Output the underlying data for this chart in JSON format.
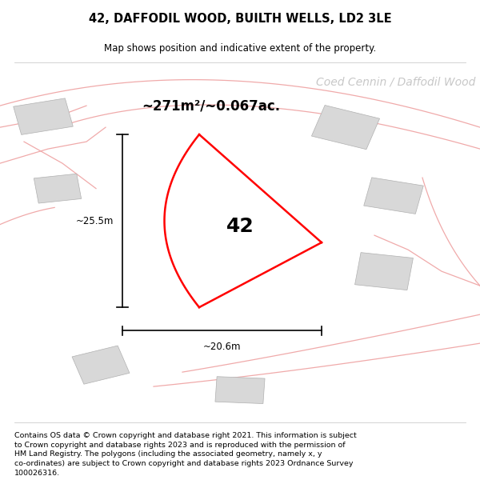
{
  "title": "42, DAFFODIL WOOD, BUILTH WELLS, LD2 3LE",
  "subtitle": "Map shows position and indicative extent of the property.",
  "footer": "Contains OS data © Crown copyright and database right 2021. This information is subject to Crown copyright and database rights 2023 and is reproduced with the permission of HM Land Registry. The polygons (including the associated geometry, namely x, y co-ordinates) are subject to Crown copyright and database rights 2023 Ordnance Survey 100026316.",
  "area_label": "~271m²/~0.067ac.",
  "width_label": "~20.6m",
  "height_label": "~25.5m",
  "plot_number": "42",
  "background_color": "#ffffff",
  "plot_color": "#ff0000",
  "road_color": "#f0aaaa",
  "grey_block_color": "#d8d8d8",
  "street_label": "Coed Cennin / Daffodil Wood",
  "title_fontsize": 10.5,
  "subtitle_fontsize": 8.5,
  "footer_fontsize": 6.8,
  "area_label_fontsize": 12,
  "plot_label_fontsize": 18,
  "street_label_fontsize": 10
}
